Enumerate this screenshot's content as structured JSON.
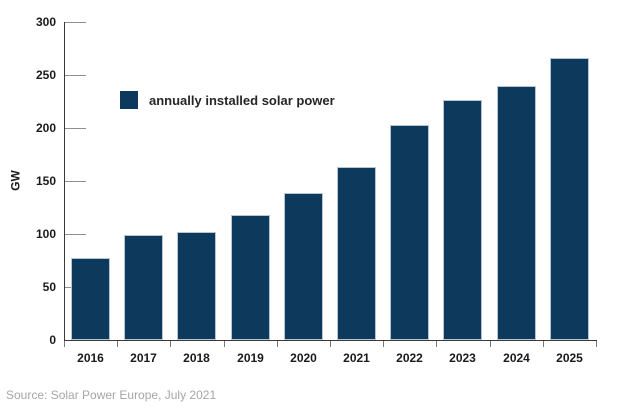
{
  "chart_data": {
    "type": "bar",
    "title": "",
    "categories": [
      "2016",
      "2017",
      "2018",
      "2019",
      "2020",
      "2021",
      "2022",
      "2023",
      "2024",
      "2025"
    ],
    "values": [
      77,
      99,
      102,
      118,
      139,
      163,
      203,
      226,
      240,
      266
    ],
    "series_name": "annually installed solar power",
    "xlabel": "",
    "ylabel": "GW",
    "ylim": [
      0,
      300
    ],
    "yticks": [
      0,
      50,
      100,
      150,
      200,
      250,
      300
    ],
    "grid": false,
    "legend": {
      "label": "annually installed solar power",
      "position": "inside-top-left"
    },
    "bar_color": "#0d3a5c",
    "unit": "GW"
  },
  "footer": {
    "source": "Source: Solar Power Europe, July 2021"
  },
  "colors": {
    "bar": "#0d3a5c",
    "bar_border": "#b9c6d1",
    "axis": "#3a3a3a",
    "y_tick": "#8f8f8f",
    "x_tick": "#777777",
    "label_text": "#1a1a1a",
    "legend_text": "#262626",
    "source_text": "#a6a6a6",
    "background": "#ffffff"
  }
}
